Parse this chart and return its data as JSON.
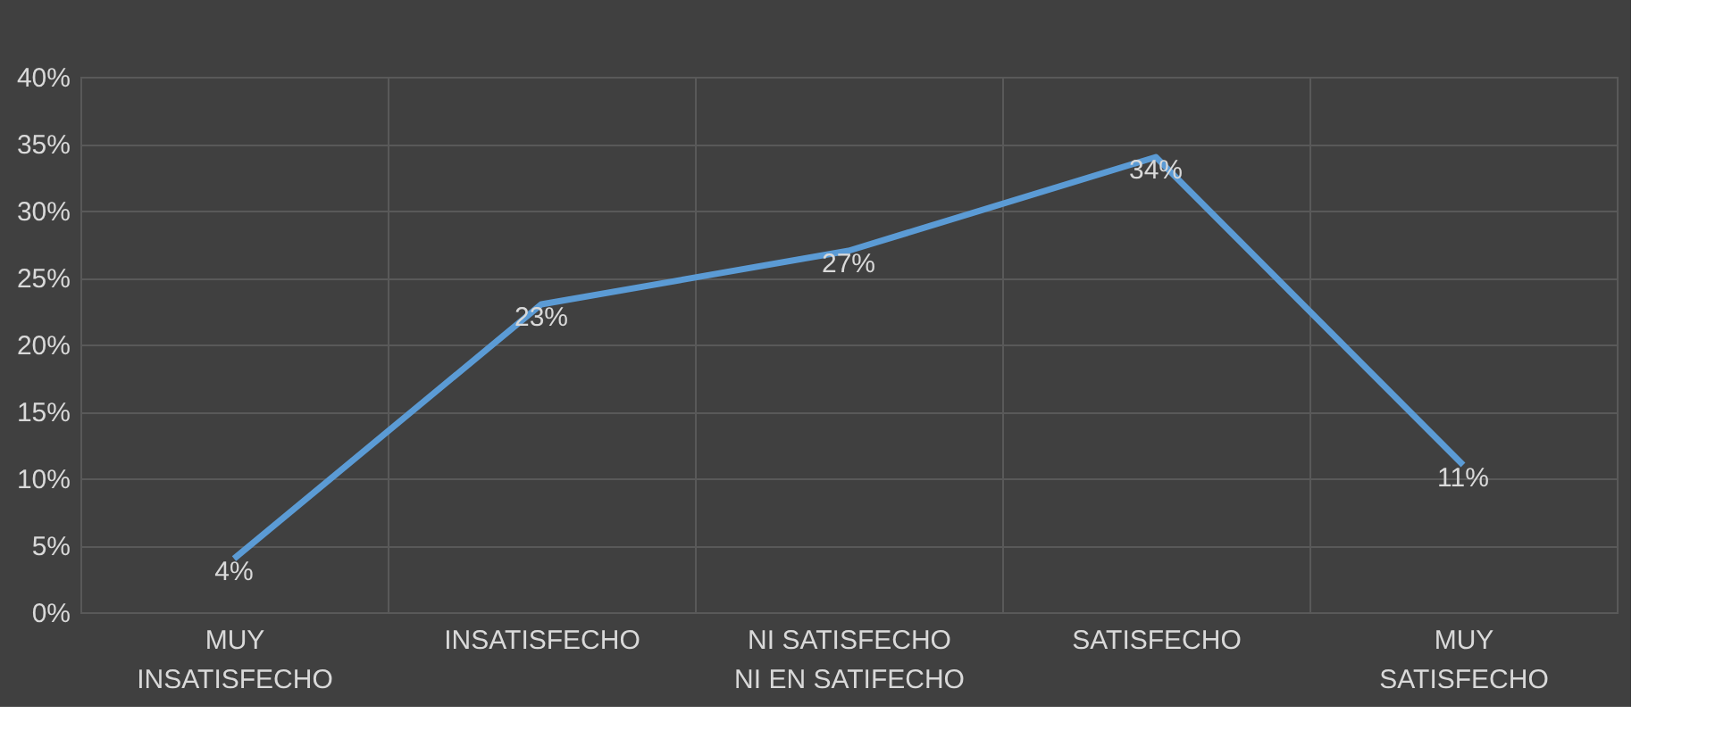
{
  "chart_data": {
    "type": "line",
    "categories": [
      "MUY\nINSATISFECHO",
      "INSATISFECHO",
      "NI SATISFECHO\nNI EN SATIFECHO",
      "SATISFECHO",
      "MUY\nSATISFECHO"
    ],
    "series": [
      {
        "color": "#5b9bd5",
        "values": [
          4,
          23,
          27,
          34,
          11
        ],
        "value_labels": [
          "4%",
          "23%",
          "27%",
          "34%",
          "11%"
        ]
      }
    ],
    "ylim": [
      0,
      40
    ],
    "yticks": [
      {
        "value": 0,
        "label": "0%"
      },
      {
        "value": 5,
        "label": "5%"
      },
      {
        "value": 10,
        "label": "10%"
      },
      {
        "value": 15,
        "label": "15%"
      },
      {
        "value": 20,
        "label": "20%"
      },
      {
        "value": 25,
        "label": "25%"
      },
      {
        "value": 30,
        "label": "30%"
      },
      {
        "value": 35,
        "label": "35%"
      },
      {
        "value": 40,
        "label": "40%"
      }
    ],
    "grid": true,
    "marker": "none",
    "line_style": "solid"
  }
}
